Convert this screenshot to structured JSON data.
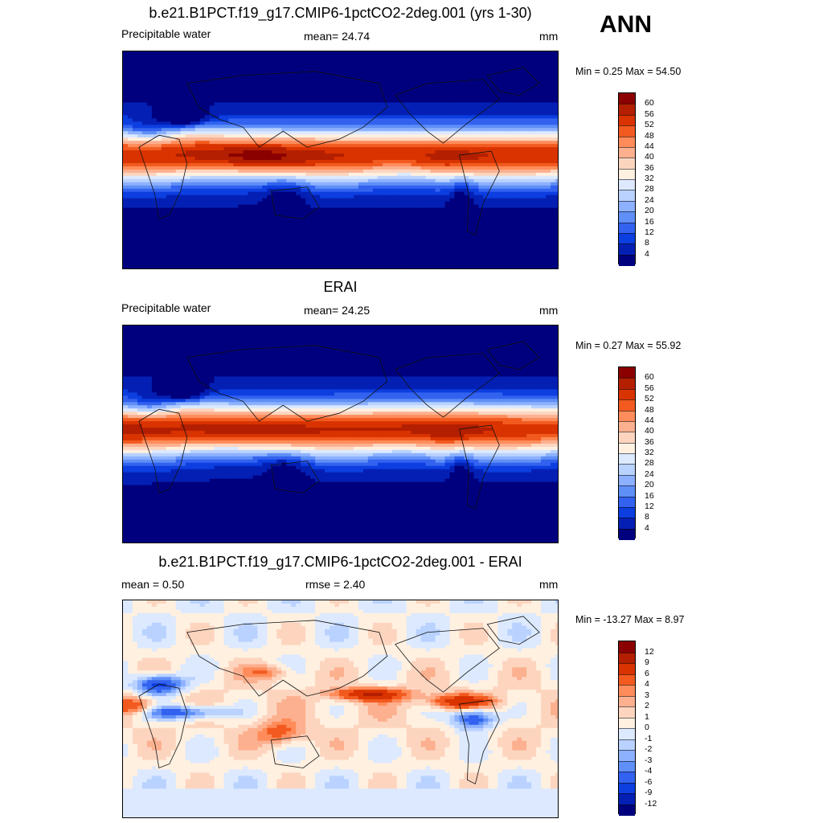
{
  "season": "ANN",
  "panels": [
    {
      "title": "b.e21.B1PCT.f19_g17.CMIP6-1pctCO2-2deg.001 (yrs 1-30)",
      "left_label": "Precipitable water",
      "center_label": "mean=  24.74",
      "units": "mm",
      "minmax": "Min =   0.25 Max =  54.50",
      "field": "model"
    },
    {
      "title": "ERAI",
      "left_label": "Precipitable water",
      "center_label": "mean=  24.25",
      "units": "mm",
      "minmax": "Min =   0.27 Max =  55.92",
      "field": "obs"
    },
    {
      "title": "b.e21.B1PCT.f19_g17.CMIP6-1pctCO2-2deg.001 - ERAI",
      "left_label": "mean =   0.50",
      "center_label": "rmse =   2.40",
      "units": "mm",
      "minmax": "Min = -13.27 Max =   8.97",
      "field": "diff"
    }
  ],
  "colorbars": {
    "abs": {
      "labels": [
        "60",
        "56",
        "52",
        "48",
        "44",
        "40",
        "36",
        "32",
        "28",
        "24",
        "20",
        "16",
        "12",
        "8",
        "4"
      ],
      "colors": [
        "#8b0000",
        "#b31f00",
        "#d93300",
        "#f25a1f",
        "#ff8c5a",
        "#fcb08f",
        "#fdd5bf",
        "#fff0e0",
        "#dce9ff",
        "#b9d2ff",
        "#8db1ff",
        "#5f8ff7",
        "#3262ef",
        "#0c3ee0",
        "#0420b4",
        "#00007f"
      ]
    },
    "diff": {
      "labels": [
        "12",
        "9",
        "6",
        "4",
        "3",
        "2",
        "1",
        "0",
        "-1",
        "-2",
        "-3",
        "-4",
        "-6",
        "-9",
        "-12"
      ],
      "colors": [
        "#8b0000",
        "#b31f00",
        "#d93300",
        "#f25a1f",
        "#ff8c5a",
        "#fcb08f",
        "#fdd5bf",
        "#fff0e0",
        "#dce9ff",
        "#b9d2ff",
        "#8db1ff",
        "#5f8ff7",
        "#3262ef",
        "#0c3ee0",
        "#0420b4",
        "#00007f"
      ]
    }
  }
}
